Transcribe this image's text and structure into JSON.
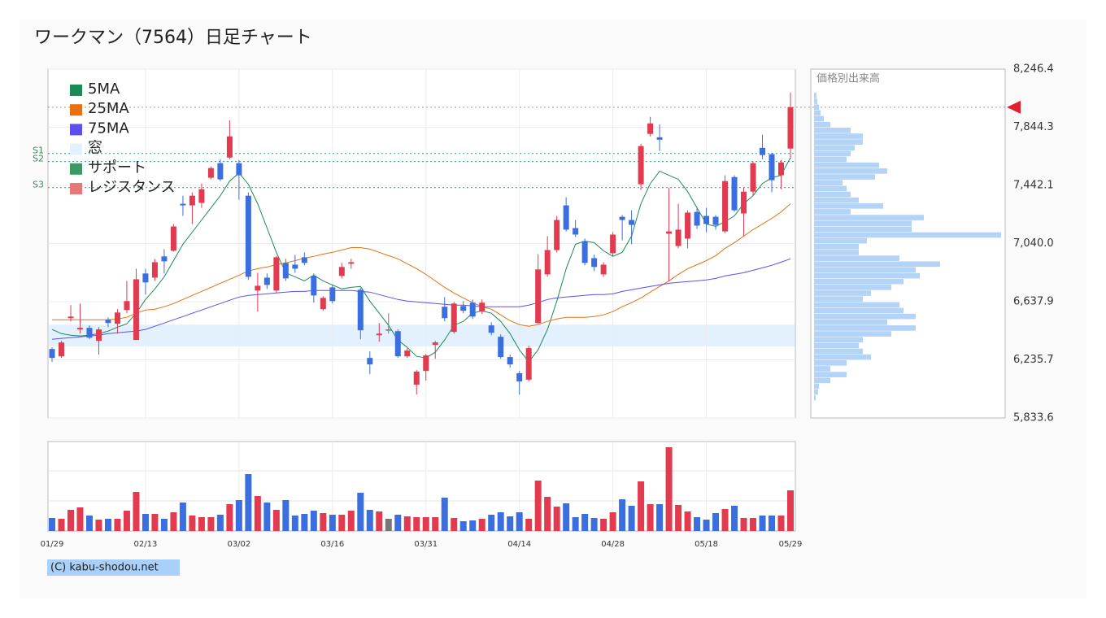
{
  "chart_data": {
    "type": "candlestick",
    "title": "ワークマン（7564）日足チャート",
    "categories": [
      "01/29",
      null,
      null,
      null,
      null,
      null,
      null,
      null,
      null,
      null,
      "02/13",
      null,
      null,
      null,
      null,
      null,
      null,
      null,
      null,
      null,
      "03/02",
      null,
      null,
      null,
      null,
      null,
      null,
      null,
      null,
      null,
      "03/16",
      null,
      null,
      null,
      null,
      null,
      null,
      null,
      null,
      null,
      "03/31",
      null,
      null,
      null,
      null,
      null,
      null,
      null,
      null,
      null,
      "04/14",
      null,
      null,
      null,
      null,
      null,
      null,
      null,
      null,
      null,
      "04/28",
      null,
      null,
      null,
      null,
      null,
      null,
      null,
      null,
      null,
      "05/18",
      null,
      null,
      null,
      null,
      null,
      null,
      null,
      null,
      "05/29"
    ],
    "open": [
      6311,
      6260,
      6524,
      6446,
      6457,
      6367,
      6513,
      6485,
      6580,
      6373,
      6833,
      6804,
      6951,
      6990,
      7315,
      7304,
      7321,
      7495,
      7596,
      7635,
      7596,
      7371,
      6715,
      6804,
      6715,
      6906,
      6894,
      6945,
      6816,
      6586,
      6737,
      6816,
      6900,
      6720,
      6249,
      6406,
      6446,
      6434,
      6260,
      6064,
      6159,
      6339,
      6603,
      6429,
      6608,
      6631,
      6569,
      6474,
      6395,
      6255,
      6143,
      6099,
      6490,
      6827,
      6995,
      7304,
      7147,
      7057,
      6939,
      6827,
      6973,
      7225,
      7203,
      7450,
      7798,
      7775,
      7108,
      7023,
      7074,
      7259,
      7231,
      7225,
      7124,
      7500,
      7248,
      7399,
      7702,
      7658,
      7512,
      7697
    ],
    "high": [
      6322,
      6367,
      6614,
      6625,
      6474,
      6462,
      6530,
      6586,
      6782,
      6866,
      6866,
      6934,
      7001,
      7175,
      7371,
      7394,
      7455,
      7573,
      7624,
      7893,
      7618,
      7394,
      6838,
      6833,
      6956,
      6934,
      6962,
      6979,
      6833,
      6676,
      6754,
      6906,
      6934,
      6732,
      6294,
      6490,
      6558,
      6446,
      6317,
      6165,
      6277,
      6367,
      6670,
      6636,
      6642,
      6653,
      6653,
      6496,
      6412,
      6272,
      6159,
      6333,
      6967,
      7091,
      7231,
      7360,
      7203,
      7074,
      6962,
      6911,
      7119,
      7237,
      7270,
      7730,
      7916,
      7865,
      7427,
      7315,
      7270,
      7287,
      7287,
      7237,
      7512,
      7512,
      7427,
      7607,
      7792,
      7669,
      7618,
      8084
    ],
    "low": [
      6221,
      6249,
      6502,
      6417,
      6378,
      6272,
      6462,
      6417,
      6558,
      6373,
      6687,
      6782,
      6833,
      6984,
      7231,
      7175,
      7287,
      7484,
      7472,
      7624,
      7343,
      6788,
      6569,
      6726,
      6698,
      6782,
      6838,
      6889,
      6631,
      6575,
      6625,
      6799,
      6866,
      6378,
      6137,
      6361,
      6417,
      6249,
      6249,
      5996,
      6092,
      6243,
      6502,
      6417,
      6558,
      6518,
      6552,
      6406,
      6243,
      6182,
      5996,
      6086,
      6485,
      6810,
      6979,
      7124,
      7085,
      6889,
      6850,
      6810,
      6951,
      7063,
      7035,
      7411,
      7781,
      7680,
      6777,
      7007,
      7007,
      7141,
      7119,
      7136,
      7113,
      7259,
      7091,
      7371,
      7624,
      7394,
      7416,
      7624
    ],
    "close": [
      6249,
      6356,
      6535,
      6457,
      6389,
      6446,
      6490,
      6563,
      6642,
      6793,
      6771,
      6911,
      6917,
      7158,
      7304,
      7371,
      7416,
      7562,
      7484,
      7781,
      7512,
      6810,
      6748,
      6754,
      6945,
      6799,
      6866,
      6906,
      6681,
      6664,
      6642,
      6878,
      6911,
      6440,
      6204,
      6417,
      6446,
      6260,
      6300,
      6154,
      6266,
      6356,
      6524,
      6625,
      6575,
      6535,
      6631,
      6423,
      6255,
      6204,
      6086,
      6317,
      6861,
      6995,
      7203,
      7136,
      7102,
      6906,
      6878,
      6894,
      7102,
      7203,
      7169,
      7714,
      7871,
      7758,
      7124,
      7136,
      7254,
      7164,
      7175,
      7169,
      7472,
      7270,
      7399,
      7596,
      7652,
      7478,
      7601,
      7983
    ],
    "volume": [
      16,
      15,
      26,
      29,
      19,
      14,
      15,
      15,
      25,
      48,
      21,
      21,
      15,
      23,
      35,
      19,
      17,
      17,
      20,
      33,
      38,
      70,
      43,
      35,
      26,
      38,
      19,
      21,
      25,
      22,
      20,
      20,
      25,
      47,
      26,
      24,
      15,
      20,
      18,
      17,
      17,
      17,
      41,
      16,
      12,
      13,
      15,
      20,
      23,
      18,
      23,
      15,
      62,
      42,
      30,
      34,
      17,
      21,
      16,
      15,
      23,
      39,
      31,
      61,
      33,
      33,
      103,
      32,
      24,
      17,
      14,
      22,
      27,
      31,
      16,
      16,
      19,
      19,
      19,
      50
    ],
    "up_color": "#e23b50",
    "down_color": "#3b6fe0",
    "flat_color": "#777777",
    "series": [
      {
        "name": "5MA",
        "color": "#1b8a55",
        "values": [
          6446,
          6417,
          6406,
          6401,
          6406,
          6417,
          6434,
          6462,
          6485,
          6558,
          6653,
          6726,
          6810,
          6922,
          7035,
          7119,
          7203,
          7287,
          7371,
          7472,
          7528,
          7450,
          7315,
          7147,
          6979,
          6838,
          6810,
          6782,
          6821,
          6782,
          6754,
          6726,
          6737,
          6743,
          6642,
          6558,
          6474,
          6373,
          6322,
          6260,
          6249,
          6288,
          6373,
          6474,
          6502,
          6558,
          6575,
          6558,
          6502,
          6417,
          6305,
          6221,
          6305,
          6446,
          6642,
          6866,
          7035,
          7057,
          7046,
          6990,
          6951,
          6979,
          7091,
          7315,
          7455,
          7540,
          7512,
          7484,
          7399,
          7287,
          7175,
          7158,
          7192,
          7231,
          7315,
          7371,
          7455,
          7495,
          7512,
          7635
        ]
      },
      {
        "name": "25MA",
        "color": "#e8700f",
        "values": [
          6513,
          6513,
          6513,
          6513,
          6513,
          6513,
          6513,
          6518,
          6530,
          6558,
          6580,
          6586,
          6603,
          6625,
          6653,
          6681,
          6709,
          6737,
          6765,
          6793,
          6821,
          6850,
          6866,
          6878,
          6894,
          6906,
          6922,
          6939,
          6951,
          6967,
          6979,
          6995,
          7012,
          7012,
          7001,
          6979,
          6956,
          6934,
          6900,
          6866,
          6827,
          6782,
          6737,
          6698,
          6664,
          6631,
          6603,
          6586,
          6547,
          6507,
          6479,
          6468,
          6479,
          6502,
          6518,
          6530,
          6530,
          6530,
          6535,
          6547,
          6569,
          6603,
          6631,
          6664,
          6704,
          6743,
          6782,
          6827,
          6866,
          6894,
          6922,
          6956,
          7007,
          7046,
          7091,
          7136,
          7175,
          7214,
          7259,
          7315
        ]
      },
      {
        "name": "75MA",
        "color": "#5b4ff0",
        "values": [
          6378,
          6384,
          6389,
          6395,
          6401,
          6406,
          6417,
          6423,
          6429,
          6434,
          6446,
          6468,
          6490,
          6513,
          6535,
          6558,
          6580,
          6603,
          6625,
          6648,
          6670,
          6681,
          6687,
          6692,
          6698,
          6704,
          6709,
          6709,
          6715,
          6715,
          6715,
          6715,
          6715,
          6709,
          6704,
          6687,
          6670,
          6653,
          6642,
          6636,
          6631,
          6625,
          6620,
          6614,
          6614,
          6608,
          6603,
          6603,
          6603,
          6603,
          6603,
          6614,
          6631,
          6653,
          6664,
          6670,
          6676,
          6681,
          6687,
          6687,
          6692,
          6709,
          6720,
          6732,
          6743,
          6754,
          6765,
          6771,
          6777,
          6782,
          6788,
          6799,
          6816,
          6827,
          6838,
          6855,
          6872,
          6889,
          6911,
          6934
        ]
      }
    ],
    "legend": [
      {
        "name": "窓",
        "color": "#e3f0fd"
      },
      {
        "name": "サポート",
        "color": "#3a9a62"
      },
      {
        "name": "レジスタンス",
        "color": "#e87878"
      }
    ],
    "gap": [
      6328,
      6479
    ],
    "levels": [
      {
        "label": "S1",
        "value": 7663
      },
      {
        "label": "S2",
        "value": 7607
      },
      {
        "label": "S3",
        "value": 7427
      }
    ],
    "ylim": [
      5833.6,
      8246.4
    ],
    "yticks": [
      {
        "value": 8246.4,
        "label": "8,246.4"
      },
      {
        "value": 7844.3,
        "label": "7,844.3"
      },
      {
        "value": 7442.1,
        "label": "7,442.1"
      },
      {
        "value": 7040.0,
        "label": "7,040.0"
      },
      {
        "value": 6637.9,
        "label": "6,637.9"
      },
      {
        "value": 6235.7,
        "label": "6,235.7"
      },
      {
        "value": 5833.6,
        "label": "5,833.6"
      }
    ],
    "grid": true,
    "volume_profile": {
      "title": "価格別出来高",
      "color": "#b3d3f7",
      "values": [
        0,
        0,
        0,
        2,
        5,
        6,
        20,
        40,
        20,
        40,
        70,
        60,
        55,
        60,
        95,
        125,
        90,
        125,
        110,
        105,
        60,
        70,
        95,
        110,
        130,
        125,
        155,
        105,
        55,
        55,
        65,
        230,
        120,
        120,
        135,
        45,
        85,
        55,
        45,
        40,
        35,
        75,
        90,
        80,
        40,
        45,
        50,
        60,
        60,
        45,
        20,
        12,
        8,
        6,
        4,
        3,
        0,
        0,
        0,
        0
      ]
    },
    "copyright": "(C) kabu-shodou.net"
  }
}
